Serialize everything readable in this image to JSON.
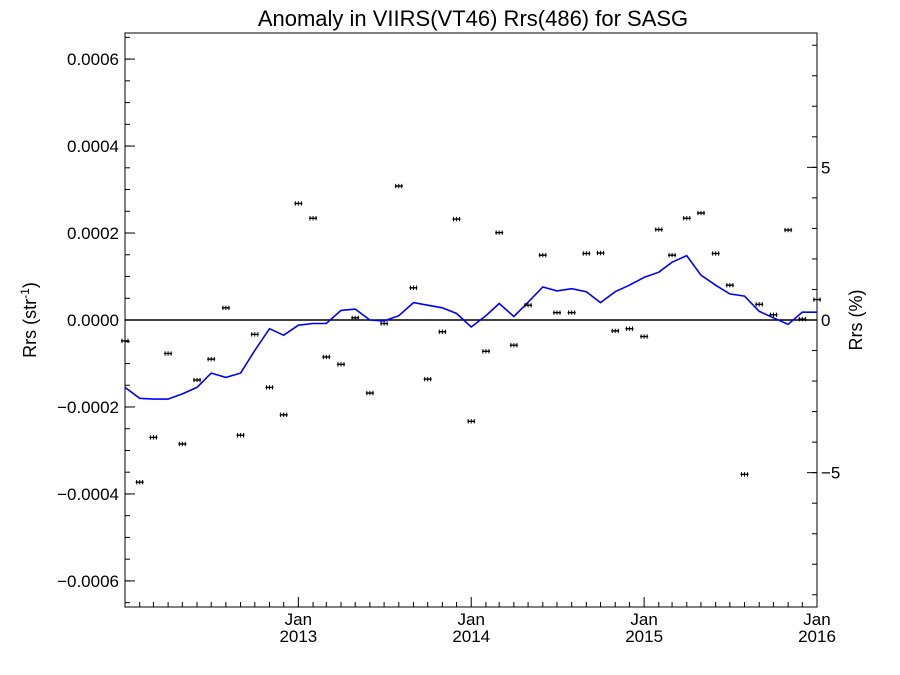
{
  "chart_data": {
    "type": "scatter",
    "title": "Anomaly in VIIRS(VT46) Rrs(486) for SASG",
    "ylabel": "Rrs (str",
    "ylabel_superscript": "-1",
    "ylabel_close": ")",
    "y2label": "Rrs (%)",
    "xlim": [
      "2012-01-01",
      "2016-01-01"
    ],
    "ylim": [
      -0.00066,
      0.00066
    ],
    "y2lim": [
      -9.4,
      9.4
    ],
    "yticks": [
      {
        "value": 0.0006,
        "label": "0.0006"
      },
      {
        "value": 0.0004,
        "label": "0.0004"
      },
      {
        "value": 0.0002,
        "label": "0.0002"
      },
      {
        "value": 0.0,
        "label": "0.0000"
      },
      {
        "value": -0.0002,
        "label": "−0.0002"
      },
      {
        "value": -0.0004,
        "label": "−0.0004"
      },
      {
        "value": -0.0006,
        "label": "−0.0006"
      }
    ],
    "y2ticks": [
      {
        "value": 5,
        "label": "5"
      },
      {
        "value": 0,
        "label": "0"
      },
      {
        "value": -5,
        "label": "−5"
      }
    ],
    "xticks": [
      {
        "date": "2013-01-01",
        "line1": "Jan",
        "line2": "2013"
      },
      {
        "date": "2014-01-01",
        "line1": "Jan",
        "line2": "2014"
      },
      {
        "date": "2015-01-01",
        "line1": "Jan",
        "line2": "2015"
      },
      {
        "date": "2016-01-01",
        "line1": "Jan",
        "line2": "2016"
      }
    ],
    "zero_line": 0,
    "grid": false,
    "series": [
      {
        "kind": "points_with_errorbars",
        "color": "#000000",
        "x": [
          "2012-01-01",
          "2012-02-01",
          "2012-03-01",
          "2012-04-01",
          "2012-05-01",
          "2012-06-01",
          "2012-07-01",
          "2012-08-01",
          "2012-09-01",
          "2012-10-01",
          "2012-11-01",
          "2012-12-01",
          "2013-01-01",
          "2013-02-01",
          "2013-03-01",
          "2013-04-01",
          "2013-05-01",
          "2013-06-01",
          "2013-07-01",
          "2013-08-01",
          "2013-09-01",
          "2013-10-01",
          "2013-11-01",
          "2013-12-01",
          "2014-01-01",
          "2014-02-01",
          "2014-03-01",
          "2014-04-01",
          "2014-05-01",
          "2014-06-01",
          "2014-07-01",
          "2014-08-01",
          "2014-09-01",
          "2014-10-01",
          "2014-11-01",
          "2014-12-01",
          "2015-01-01",
          "2015-02-01",
          "2015-03-01",
          "2015-04-01",
          "2015-05-01",
          "2015-06-01",
          "2015-07-01",
          "2015-08-01",
          "2015-09-01",
          "2015-10-01",
          "2015-11-01",
          "2015-12-01",
          "2016-01-01"
        ],
        "y": [
          -4.8e-05,
          -0.000373,
          -0.00027,
          -7.7e-05,
          -0.000285,
          -0.000138,
          -9e-05,
          2.8e-05,
          -0.000265,
          -3.3e-05,
          -0.000155,
          -0.000218,
          0.000268,
          0.000234,
          -8.5e-05,
          -0.000102,
          5e-06,
          -0.000168,
          -8e-06,
          0.000308,
          7.4e-05,
          -0.000136,
          -2.7e-05,
          0.000232,
          -0.000233,
          -7.2e-05,
          0.000201,
          -5.8e-05,
          3.4e-05,
          0.000149,
          1.7e-05,
          1.7e-05,
          0.000153,
          0.000154,
          -2.5e-05,
          -2e-05,
          -3.8e-05,
          0.000208,
          0.000149,
          0.000234,
          0.000246,
          0.000153,
          8e-05,
          -0.000355,
          3.6e-05,
          1.2e-05,
          0.000207,
          2e-06,
          4.7e-05
        ],
        "yerr": 4e-06
      },
      {
        "kind": "line",
        "color": "#0000ff",
        "x": [
          "2012-01-01",
          "2012-02-01",
          "2012-03-01",
          "2012-04-01",
          "2012-05-01",
          "2012-06-01",
          "2012-07-01",
          "2012-08-01",
          "2012-09-01",
          "2012-10-01",
          "2012-11-01",
          "2012-12-01",
          "2013-01-01",
          "2013-02-01",
          "2013-03-01",
          "2013-04-01",
          "2013-05-01",
          "2013-06-01",
          "2013-07-01",
          "2013-08-01",
          "2013-09-01",
          "2013-10-01",
          "2013-11-01",
          "2013-12-01",
          "2014-01-01",
          "2014-02-01",
          "2014-03-01",
          "2014-04-01",
          "2014-05-01",
          "2014-06-01",
          "2014-07-01",
          "2014-08-01",
          "2014-09-01",
          "2014-10-01",
          "2014-11-01",
          "2014-12-01",
          "2015-01-01",
          "2015-02-01",
          "2015-03-01",
          "2015-04-01",
          "2015-05-01",
          "2015-06-01",
          "2015-07-01",
          "2015-08-01",
          "2015-09-01",
          "2015-10-01",
          "2015-11-01",
          "2015-12-01",
          "2016-01-01"
        ],
        "y": [
          -0.000155,
          -0.00018,
          -0.000182,
          -0.000182,
          -0.00017,
          -0.000155,
          -0.000122,
          -0.000132,
          -0.000122,
          -7e-05,
          -2e-05,
          -3.5e-05,
          -1.2e-05,
          -8e-06,
          -8e-06,
          2.2e-05,
          2.5e-05,
          0.0,
          -2e-06,
          1e-05,
          4e-05,
          3.4e-05,
          2.8e-05,
          1.5e-05,
          -1.6e-05,
          1e-05,
          3.8e-05,
          8e-06,
          4.1e-05,
          7.6e-05,
          6.7e-05,
          7.2e-05,
          6.5e-05,
          4e-05,
          6.5e-05,
          8e-05,
          9.8e-05,
          0.00011,
          0.000133,
          0.000148,
          0.000103,
          8e-05,
          6e-05,
          5.5e-05,
          2e-05,
          5e-06,
          -1e-05,
          1.8e-05,
          1.8e-05
        ]
      }
    ]
  }
}
